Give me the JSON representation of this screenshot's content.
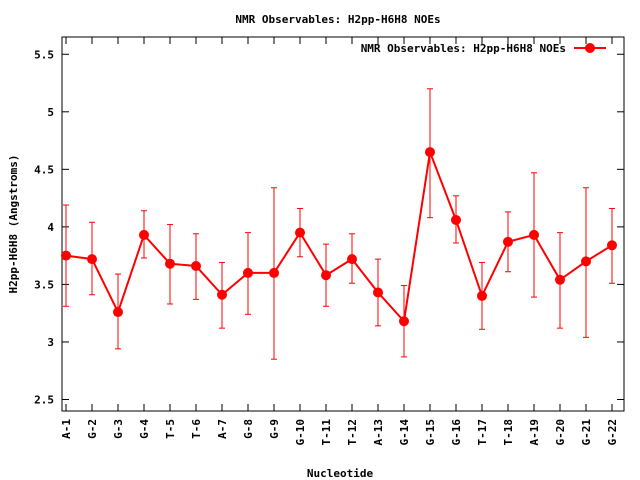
{
  "chart_data": {
    "type": "line",
    "title": "NMR Observables: H2pp-H6H8 NOEs",
    "xlabel": "Nucleotide",
    "ylabel": "H2pp-H6H8 (Angstroms)",
    "ylim": [
      2.4,
      5.65
    ],
    "yticks": [
      "2.5",
      "3",
      "3.5",
      "4",
      "4.5",
      "5",
      "5.5"
    ],
    "ytick_values": [
      2.5,
      3,
      3.5,
      4,
      4.5,
      5,
      5.5
    ],
    "grid": false,
    "legend_position": "top-right",
    "color": "#ff0000",
    "categories": [
      "A-1",
      "G-2",
      "G-3",
      "G-4",
      "T-5",
      "T-6",
      "A-7",
      "G-8",
      "G-9",
      "G-10",
      "T-11",
      "T-12",
      "A-13",
      "G-14",
      "G-15",
      "G-16",
      "T-17",
      "T-18",
      "A-19",
      "G-20",
      "G-21",
      "G-22"
    ],
    "series": [
      {
        "name": "NMR Observables: H2pp-H6H8 NOEs",
        "values": [
          3.75,
          3.72,
          3.26,
          3.93,
          3.68,
          3.66,
          3.41,
          3.6,
          3.6,
          3.95,
          3.58,
          3.72,
          3.43,
          3.18,
          4.65,
          4.06,
          3.4,
          3.87,
          3.93,
          3.54,
          3.7,
          3.84
        ],
        "err_low": [
          3.31,
          3.41,
          2.94,
          3.73,
          3.33,
          3.37,
          3.12,
          3.24,
          2.85,
          3.74,
          3.31,
          3.51,
          3.14,
          2.87,
          4.08,
          3.86,
          3.11,
          3.61,
          3.39,
          3.12,
          3.04,
          3.51
        ],
        "err_high": [
          4.19,
          4.04,
          3.59,
          4.14,
          4.02,
          3.94,
          3.69,
          3.95,
          4.34,
          4.16,
          3.85,
          3.94,
          3.72,
          3.49,
          5.2,
          4.27,
          3.69,
          4.13,
          4.47,
          3.95,
          4.34,
          4.16
        ]
      }
    ]
  }
}
